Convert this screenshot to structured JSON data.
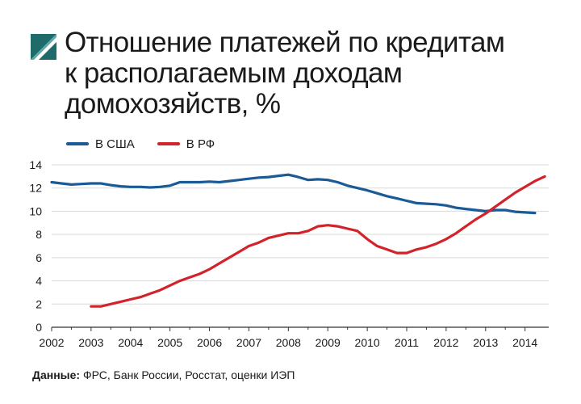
{
  "header": {
    "title_lines": [
      "Отношение платежей по кредитам",
      "к располагаемым доходам",
      "домохозяйств, %"
    ],
    "logo": "diagonal-square-logo-icon"
  },
  "footer": {
    "source_label": "Данные:",
    "source_text": " ФРС, Банк России, Росстат, оценки ИЭП"
  },
  "colors": {
    "us": "#1a5a96",
    "rf": "#d2232a",
    "axis": "#333333",
    "grid": "#d9d9d9"
  },
  "chart_data": {
    "type": "line",
    "title": "Отношение платежей по кредитам к располагаемым доходам домохозяйств, %",
    "xlabel": "",
    "ylabel": "",
    "xlim": [
      2002,
      2014.6
    ],
    "ylim": [
      0,
      14
    ],
    "yticks": [
      0,
      2,
      4,
      6,
      8,
      10,
      12,
      14
    ],
    "xticks": [
      2002,
      2003,
      2004,
      2005,
      2006,
      2007,
      2008,
      2009,
      2010,
      2011,
      2012,
      2013,
      2014
    ],
    "grid": true,
    "legend_position": "top-left",
    "series": [
      {
        "name": "В США",
        "color": "#1a5a96",
        "x": [
          2002,
          2002.25,
          2002.5,
          2002.75,
          2003,
          2003.25,
          2003.5,
          2003.75,
          2004,
          2004.25,
          2004.5,
          2004.75,
          2005,
          2005.25,
          2005.5,
          2005.75,
          2006,
          2006.25,
          2006.5,
          2006.75,
          2007,
          2007.25,
          2007.5,
          2007.75,
          2008,
          2008.25,
          2008.5,
          2008.75,
          2009,
          2009.25,
          2009.5,
          2009.75,
          2010,
          2010.25,
          2010.5,
          2010.75,
          2011,
          2011.25,
          2011.5,
          2011.75,
          2012,
          2012.25,
          2012.5,
          2012.75,
          2013,
          2013.25,
          2013.5,
          2013.75,
          2014,
          2014.25
        ],
        "y": [
          12.5,
          12.4,
          12.3,
          12.35,
          12.4,
          12.4,
          12.25,
          12.15,
          12.1,
          12.1,
          12.05,
          12.1,
          12.2,
          12.5,
          12.5,
          12.5,
          12.55,
          12.5,
          12.6,
          12.7,
          12.8,
          12.9,
          12.95,
          13.05,
          13.15,
          12.95,
          12.7,
          12.75,
          12.7,
          12.5,
          12.2,
          12.0,
          11.8,
          11.55,
          11.3,
          11.1,
          10.9,
          10.7,
          10.65,
          10.6,
          10.5,
          10.3,
          10.2,
          10.1,
          10.0,
          10.1,
          10.1,
          9.95,
          9.9,
          9.85
        ]
      },
      {
        "name": "В РФ",
        "color": "#d2232a",
        "x": [
          2003,
          2003.25,
          2003.5,
          2003.75,
          2004,
          2004.25,
          2004.5,
          2004.75,
          2005,
          2005.25,
          2005.5,
          2005.75,
          2006,
          2006.25,
          2006.5,
          2006.75,
          2007,
          2007.25,
          2007.5,
          2007.75,
          2008,
          2008.25,
          2008.5,
          2008.75,
          2009,
          2009.25,
          2009.5,
          2009.75,
          2010,
          2010.25,
          2010.5,
          2010.75,
          2011,
          2011.25,
          2011.5,
          2011.75,
          2012,
          2012.25,
          2012.5,
          2012.75,
          2013,
          2013.25,
          2013.5,
          2013.75,
          2014,
          2014.25,
          2014.5
        ],
        "y": [
          1.8,
          1.8,
          2.0,
          2.2,
          2.4,
          2.6,
          2.9,
          3.2,
          3.6,
          4.0,
          4.3,
          4.6,
          5.0,
          5.5,
          6.0,
          6.5,
          7.0,
          7.3,
          7.7,
          7.9,
          8.1,
          8.1,
          8.3,
          8.7,
          8.8,
          8.7,
          8.5,
          8.3,
          7.6,
          7.0,
          6.7,
          6.4,
          6.4,
          6.7,
          6.9,
          7.2,
          7.6,
          8.1,
          8.7,
          9.3,
          9.8,
          10.4,
          11.0,
          11.6,
          12.1,
          12.6,
          13.0
        ]
      }
    ]
  }
}
